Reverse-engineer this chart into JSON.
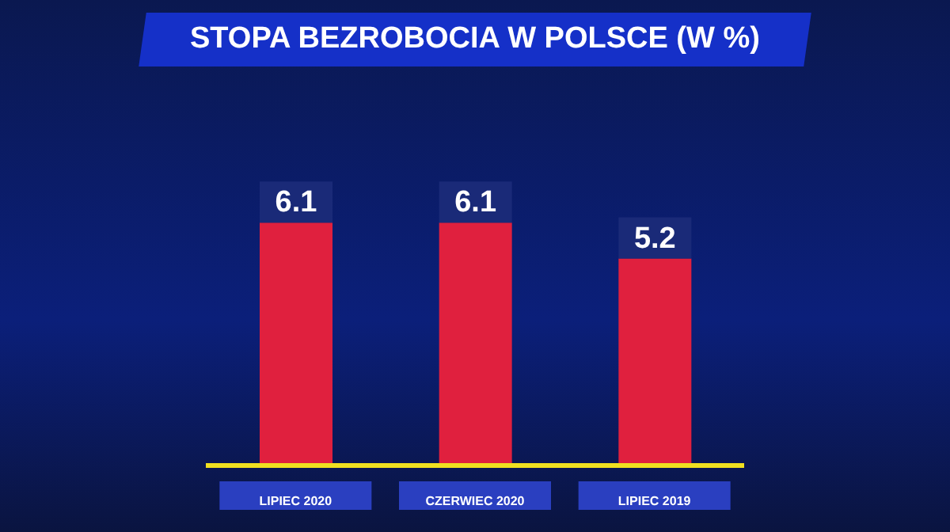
{
  "chart_data": {
    "type": "bar",
    "title": "STOPA BEZROBOCIA W POLSCE (W %)",
    "categories": [
      "LIPIEC 2020",
      "CZERWIEC 2020",
      "LIPIEC 2019"
    ],
    "values": [
      6.1,
      6.1,
      5.2
    ],
    "color": "#e0203e",
    "data_labels": true,
    "ylim": [
      0,
      7
    ],
    "tick_labels": "x"
  }
}
